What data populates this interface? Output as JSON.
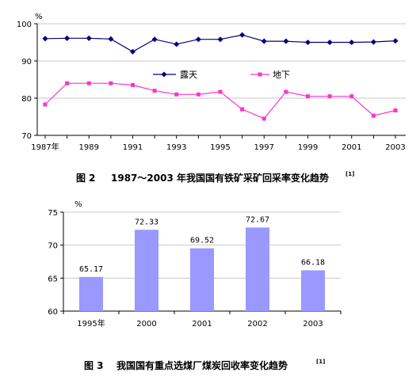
{
  "chart_data": [
    {
      "type": "line",
      "ylabel": "%",
      "ylim": [
        70,
        100
      ],
      "yticks": [
        70,
        80,
        90,
        100
      ],
      "x": [
        1987,
        1988,
        1989,
        1990,
        1991,
        1992,
        1993,
        1994,
        1995,
        1996,
        1997,
        1998,
        1999,
        2000,
        2001,
        2002,
        2003
      ],
      "xtick_labels": [
        "1987年",
        "1989",
        "1991",
        "1993",
        "1995",
        "1997",
        "1999",
        "2001",
        "2003"
      ],
      "xtick_years": [
        1987,
        1989,
        1991,
        1993,
        1995,
        1997,
        1999,
        2001,
        2003
      ],
      "grid": true,
      "legend_position": "center",
      "series": [
        {
          "name": "露天",
          "color": "#00007f",
          "values": [
            96.0,
            96.1,
            96.1,
            95.9,
            92.5,
            95.8,
            94.5,
            95.8,
            95.8,
            97.0,
            95.3,
            95.3,
            95.0,
            95.0,
            95.0,
            95.1,
            95.4
          ]
        },
        {
          "name": "地下",
          "color": "#ff33cc",
          "values": [
            78.3,
            84.0,
            84.0,
            84.0,
            83.5,
            82.0,
            81.0,
            81.0,
            81.7,
            77.0,
            74.5,
            81.7,
            80.5,
            80.5,
            80.5,
            75.3,
            76.7
          ]
        }
      ],
      "caption_label": "图 2",
      "caption_text": "1987～2003 年我国国有铁矿采矿回采率变化趋势",
      "caption_ref": "[1]"
    },
    {
      "type": "bar",
      "ylabel": "%",
      "ylim": [
        60,
        75
      ],
      "yticks": [
        60,
        65,
        70,
        75
      ],
      "categories": [
        "1995年",
        "2000",
        "2001",
        "2002",
        "2003"
      ],
      "values": [
        65.17,
        72.33,
        69.52,
        72.67,
        66.18
      ],
      "data_labels": [
        "65.17",
        "72.33",
        "69.52",
        "72.67",
        "66.18"
      ],
      "bar_color": "#9999ff",
      "grid": true,
      "caption_label": "图 3",
      "caption_text": "我国国有重点选煤厂煤炭回收率变化趋势",
      "caption_ref": "[1]"
    }
  ]
}
